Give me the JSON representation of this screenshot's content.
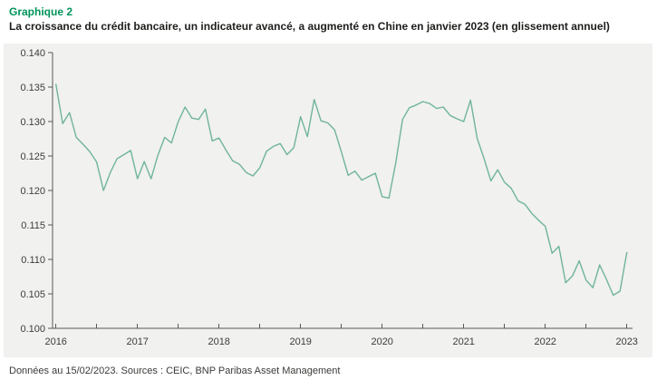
{
  "header": {
    "figure_label": "Graphique 2",
    "figure_title": "La croissance du crédit bancaire, un indicateur avancé, a augmenté en Chine en janvier 2023 (en glissement annuel)"
  },
  "footer": {
    "source_note": "Données au 15/02/2023. Sources : CEIC, BNP Paribas Asset Management"
  },
  "colors": {
    "accent_green": "#00945a",
    "line": "#6fb49d",
    "panel_background": "#f1f1ef",
    "axis": "#58585a",
    "text": "#1d1d1b"
  },
  "chart_data": {
    "type": "line",
    "title": "La croissance du crédit bancaire, un indicateur avancé, a augmenté en Chine en janvier 2023 (en glissement annuel)",
    "x_frequency": "monthly",
    "x_start": "2016-01",
    "x_end": "2023-01",
    "x_tick_labels": [
      "2016",
      "2017",
      "2018",
      "2019",
      "2020",
      "2021",
      "2022",
      "2023"
    ],
    "y_tick_labels": [
      "0.100",
      "0.105",
      "0.110",
      "0.115",
      "0.120",
      "0.125",
      "0.130",
      "0.135",
      "0.140"
    ],
    "ylim": [
      0.1,
      0.14
    ],
    "grid": false,
    "legend": "none",
    "series": [
      {
        "name": "Croissance du crédit bancaire en Chine (glissement annuel)",
        "color": "#6fb49d",
        "values": [
          0.1354,
          0.1297,
          0.1313,
          0.1277,
          0.1267,
          0.1256,
          0.1241,
          0.12,
          0.1226,
          0.1246,
          0.1252,
          0.1258,
          0.1217,
          0.1242,
          0.1217,
          0.1251,
          0.1277,
          0.1269,
          0.13,
          0.1321,
          0.1305,
          0.1303,
          0.1318,
          0.1272,
          0.1276,
          0.1259,
          0.1243,
          0.1238,
          0.1226,
          0.1221,
          0.1233,
          0.1257,
          0.1264,
          0.1268,
          0.1252,
          0.1262,
          0.1307,
          0.1278,
          0.1332,
          0.1301,
          0.1298,
          0.1288,
          0.1256,
          0.1222,
          0.1228,
          0.1215,
          0.122,
          0.1225,
          0.1191,
          0.1189,
          0.124,
          0.1303,
          0.132,
          0.1324,
          0.1329,
          0.1326,
          0.1319,
          0.1321,
          0.1309,
          0.1304,
          0.13,
          0.1331,
          0.1275,
          0.1246,
          0.1214,
          0.123,
          0.1212,
          0.1203,
          0.1185,
          0.118,
          0.1167,
          0.1157,
          0.1148,
          0.1109,
          0.1119,
          0.1066,
          0.1076,
          0.1098,
          0.107,
          0.1059,
          0.1092,
          0.1071,
          0.1048,
          0.1054,
          0.111
        ]
      }
    ]
  }
}
